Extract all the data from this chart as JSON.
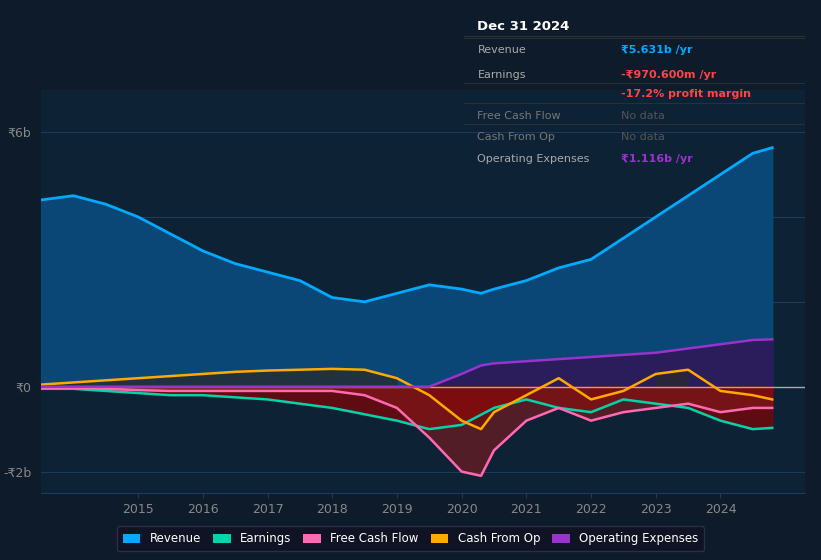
{
  "bg_color": "#0d1b2a",
  "plot_bg_color": "#0d2235",
  "gridline_color": "#1e3a5f",
  "zero_line_color": "#aaaaaa",
  "revenue_color": "#00aaff",
  "revenue_fill": "#0a4a7a",
  "earnings_color": "#00d4aa",
  "fcf_color": "#ff69b4",
  "cashop_color": "#ffaa00",
  "opex_color": "#9933cc",
  "opex_fill": "#2d1a5a",
  "negative_fill": "#8b0000",
  "ylim": [
    -2500000000,
    7000000000
  ],
  "xlim": [
    2013.5,
    2025.3
  ],
  "xticks": [
    2015,
    2016,
    2017,
    2018,
    2019,
    2020,
    2021,
    2022,
    2023,
    2024
  ],
  "revenue": {
    "x": [
      2013.5,
      2014.0,
      2014.5,
      2015.0,
      2015.5,
      2016.0,
      2016.5,
      2017.0,
      2017.5,
      2018.0,
      2018.5,
      2019.0,
      2019.5,
      2020.0,
      2020.3,
      2020.5,
      2021.0,
      2021.5,
      2022.0,
      2022.5,
      2023.0,
      2023.5,
      2024.0,
      2024.5,
      2024.8
    ],
    "y": [
      4400000000,
      4500000000,
      4300000000,
      4000000000,
      3600000000,
      3200000000,
      2900000000,
      2700000000,
      2500000000,
      2100000000,
      2000000000,
      2200000000,
      2400000000,
      2300000000,
      2200000000,
      2300000000,
      2500000000,
      2800000000,
      3000000000,
      3500000000,
      4000000000,
      4500000000,
      5000000000,
      5500000000,
      5631000000
    ]
  },
  "earnings": {
    "x": [
      2013.5,
      2014.0,
      2014.5,
      2015.0,
      2015.5,
      2016.0,
      2016.5,
      2017.0,
      2017.5,
      2018.0,
      2018.5,
      2019.0,
      2019.5,
      2020.0,
      2020.5,
      2021.0,
      2021.5,
      2022.0,
      2022.5,
      2023.0,
      2023.5,
      2024.0,
      2024.5,
      2024.8
    ],
    "y": [
      -50000000,
      -50000000,
      -100000000,
      -150000000,
      -200000000,
      -200000000,
      -250000000,
      -300000000,
      -400000000,
      -500000000,
      -650000000,
      -800000000,
      -1000000000,
      -900000000,
      -500000000,
      -300000000,
      -500000000,
      -600000000,
      -300000000,
      -400000000,
      -500000000,
      -800000000,
      -1000000000,
      -970000000
    ]
  },
  "fcf": {
    "x": [
      2013.5,
      2014.0,
      2014.5,
      2015.0,
      2015.5,
      2016.0,
      2016.5,
      2017.0,
      2017.5,
      2018.0,
      2018.5,
      2019.0,
      2019.5,
      2020.0,
      2020.3,
      2020.5,
      2021.0,
      2021.5,
      2022.0,
      2022.5,
      2023.0,
      2023.5,
      2024.0,
      2024.5,
      2024.8
    ],
    "y": [
      -30000000,
      -30000000,
      -50000000,
      -80000000,
      -100000000,
      -100000000,
      -100000000,
      -100000000,
      -100000000,
      -100000000,
      -200000000,
      -500000000,
      -1200000000,
      -2000000000,
      -2100000000,
      -1500000000,
      -800000000,
      -500000000,
      -800000000,
      -600000000,
      -500000000,
      -400000000,
      -600000000,
      -500000000,
      -500000000
    ]
  },
  "cashop": {
    "x": [
      2013.5,
      2014.0,
      2014.5,
      2015.0,
      2015.5,
      2016.0,
      2016.5,
      2017.0,
      2017.5,
      2018.0,
      2018.5,
      2019.0,
      2019.5,
      2020.0,
      2020.3,
      2020.5,
      2021.0,
      2021.5,
      2022.0,
      2022.5,
      2023.0,
      2023.5,
      2024.0,
      2024.5,
      2024.8
    ],
    "y": [
      50000000,
      100000000,
      150000000,
      200000000,
      250000000,
      300000000,
      350000000,
      380000000,
      400000000,
      420000000,
      400000000,
      200000000,
      -200000000,
      -800000000,
      -1000000000,
      -600000000,
      -200000000,
      200000000,
      -300000000,
      -100000000,
      300000000,
      400000000,
      -100000000,
      -200000000,
      -300000000
    ]
  },
  "opex": {
    "x": [
      2013.5,
      2014.0,
      2014.5,
      2015.0,
      2015.5,
      2016.0,
      2016.5,
      2017.0,
      2017.5,
      2018.0,
      2018.5,
      2019.0,
      2019.5,
      2020.0,
      2020.3,
      2020.5,
      2021.0,
      2021.5,
      2022.0,
      2022.5,
      2023.0,
      2023.5,
      2024.0,
      2024.5,
      2024.8
    ],
    "y": [
      0,
      0,
      0,
      0,
      0,
      0,
      0,
      0,
      0,
      0,
      0,
      0,
      0,
      300000000,
      500000000,
      550000000,
      600000000,
      650000000,
      700000000,
      750000000,
      800000000,
      900000000,
      1000000000,
      1100000000,
      1116000000
    ]
  },
  "info_box": {
    "title": "Dec 31 2024",
    "rows": [
      {
        "label": "Revenue",
        "value": "₹5.631b /yr",
        "value_color": "#00aaff",
        "label_color": "#aaaaaa",
        "separator": true
      },
      {
        "label": "Earnings",
        "value": "-₹970.600m /yr",
        "value_color": "#ff4444",
        "label_color": "#aaaaaa",
        "separator": false
      },
      {
        "label": "",
        "value": "-17.2% profit margin",
        "value_color": "#ff4444",
        "label_color": "#aaaaaa",
        "separator": true
      },
      {
        "label": "Free Cash Flow",
        "value": "No data",
        "value_color": "#555555",
        "label_color": "#777777",
        "separator": true
      },
      {
        "label": "Cash From Op",
        "value": "No data",
        "value_color": "#555555",
        "label_color": "#777777",
        "separator": true
      },
      {
        "label": "Operating Expenses",
        "value": "₹1.116b /yr",
        "value_color": "#9933cc",
        "label_color": "#aaaaaa",
        "separator": false
      }
    ]
  },
  "legend": [
    {
      "label": "Revenue",
      "color": "#00aaff"
    },
    {
      "label": "Earnings",
      "color": "#00d4aa"
    },
    {
      "label": "Free Cash Flow",
      "color": "#ff69b4"
    },
    {
      "label": "Cash From Op",
      "color": "#ffaa00"
    },
    {
      "label": "Operating Expenses",
      "color": "#9933cc"
    }
  ],
  "tick_color": "#888888"
}
